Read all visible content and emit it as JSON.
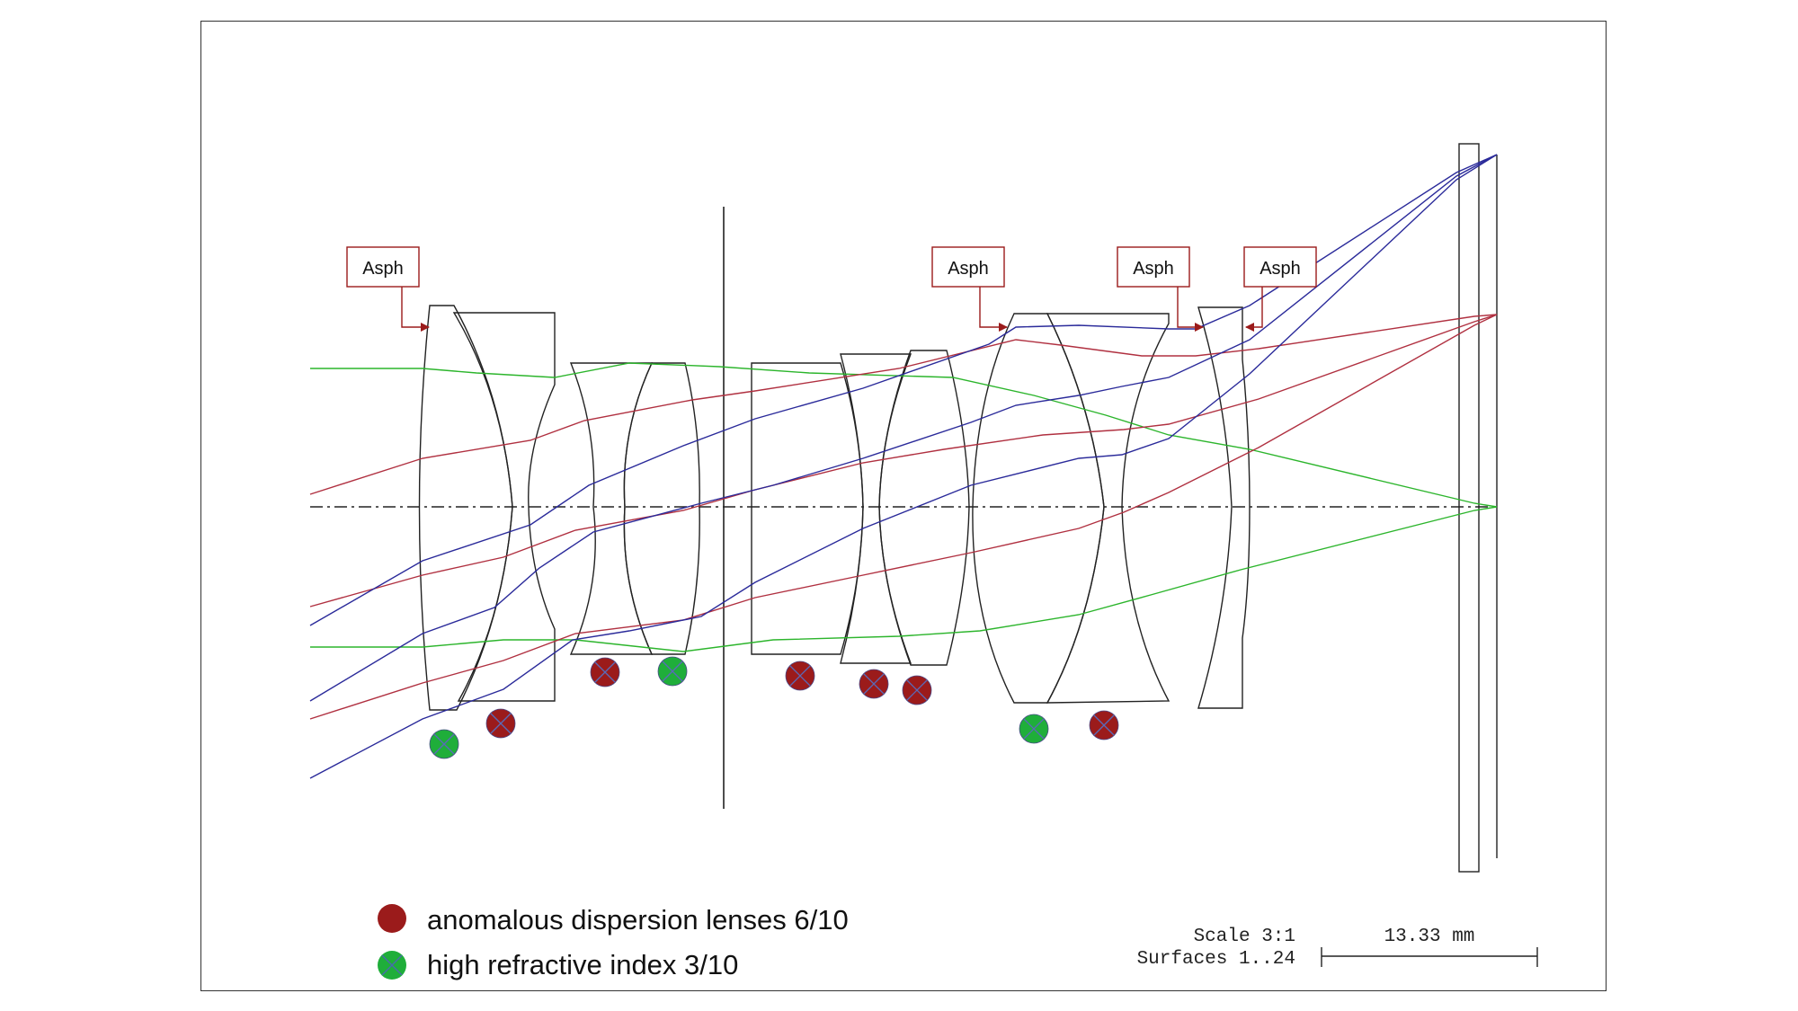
{
  "asph_labels": [
    "Asph",
    "Asph",
    "Asph",
    "Asph"
  ],
  "legend": {
    "anomalous": "anomalous dispersion lenses 6/10",
    "high_index": "high refractive index  3/10"
  },
  "scale": {
    "scale_text": "Scale 3:1",
    "surfaces_text": "Surfaces 1..24",
    "bar_length": "13.33 mm"
  },
  "colors": {
    "red_ray": "#b03040",
    "blue_ray": "#2a2a9a",
    "green_ray": "#2cb52c",
    "red_marker": "#9b1b1b",
    "green_marker": "#1fae3a",
    "asph_box": "#9b1b1b"
  },
  "marker_icon": "circled-x-icon"
}
